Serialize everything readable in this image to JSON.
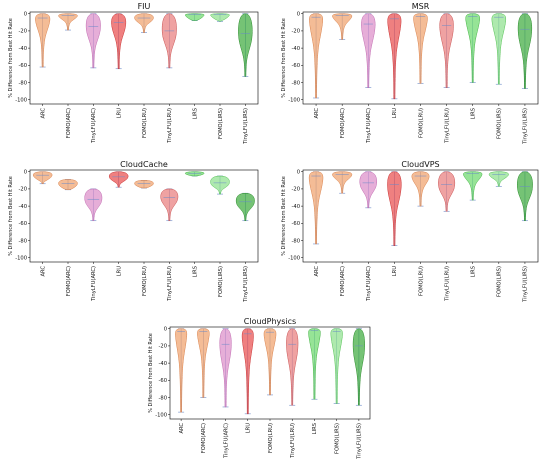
{
  "chart_data": [
    {
      "type": "violin",
      "title": "FIU",
      "ylabel": "% Difference from Best Hit Rate",
      "ylim": [
        -105,
        2
      ],
      "yticks": [
        0,
        -20,
        -40,
        -60,
        -80,
        -100
      ],
      "categories": [
        "ARC",
        "FOMO(ARC)",
        "TinyLFU(ARC)",
        "LRU",
        "FOMO(LRU)",
        "TinyLFU(LRU)",
        "LIRS",
        "FOMO(LIRS)",
        "TinyLFU(LIRS)"
      ],
      "distributions": [
        {
          "min": -62,
          "max": 0,
          "median": -5
        },
        {
          "min": -19,
          "max": 0,
          "median": -2
        },
        {
          "min": -63,
          "max": 0,
          "median": -15
        },
        {
          "min": -64,
          "max": 0,
          "median": -10
        },
        {
          "min": -22,
          "max": 0,
          "median": -5
        },
        {
          "min": -63,
          "max": 0,
          "median": -20
        },
        {
          "min": -8,
          "max": 0,
          "median": -1
        },
        {
          "min": -9,
          "max": 0,
          "median": -1
        },
        {
          "min": -73,
          "max": 0,
          "median": -23
        }
      ]
    },
    {
      "type": "violin",
      "title": "MSR",
      "ylabel": "% Difference from Best Hit Rate",
      "ylim": [
        -105,
        2
      ],
      "yticks": [
        0,
        -20,
        -40,
        -60,
        -80,
        -100
      ],
      "categories": [
        "ARC",
        "FOMO(ARC)",
        "TinyLFU(ARC)",
        "LRU",
        "FOMO(LRU)",
        "TinyLFU(LRU)",
        "LIRS",
        "FOMO(LIRS)",
        "TinyLFU(LIRS)"
      ],
      "distributions": [
        {
          "min": -98,
          "max": 0,
          "median": -4
        },
        {
          "min": -30,
          "max": 0,
          "median": -2
        },
        {
          "min": -86,
          "max": 0,
          "median": -12
        },
        {
          "min": -99,
          "max": 0,
          "median": -6
        },
        {
          "min": -81,
          "max": 0,
          "median": -3
        },
        {
          "min": -86,
          "max": 0,
          "median": -14
        },
        {
          "min": -80,
          "max": 0,
          "median": -3
        },
        {
          "min": -82,
          "max": 0,
          "median": -4
        },
        {
          "min": -87,
          "max": 0,
          "median": -18
        }
      ]
    },
    {
      "type": "violin",
      "title": "CloudCache",
      "ylabel": "% Difference from Best Hit Rate",
      "ylim": [
        -105,
        2
      ],
      "yticks": [
        0,
        -20,
        -40,
        -60,
        -80,
        -100
      ],
      "categories": [
        "ARC",
        "FOMO(ARC)",
        "TinyLFU(ARC)",
        "LRU",
        "FOMO(LRU)",
        "TinyLFU(LRU)",
        "LIRS",
        "FOMO(LIRS)",
        "TinyLFU(LIRS)"
      ],
      "distributions": [
        {
          "min": -14,
          "max": 0,
          "median": -4
        },
        {
          "min": -21,
          "max": -9,
          "median": -14
        },
        {
          "min": -57,
          "max": -20,
          "median": -32
        },
        {
          "min": -18,
          "max": 0,
          "median": -6
        },
        {
          "min": -19,
          "max": -10,
          "median": -14
        },
        {
          "min": -57,
          "max": -20,
          "median": -30
        },
        {
          "min": -5,
          "max": 0,
          "median": -2
        },
        {
          "min": -26,
          "max": -5,
          "median": -13
        },
        {
          "min": -57,
          "max": -25,
          "median": -35
        }
      ]
    },
    {
      "type": "violin",
      "title": "CloudVPS",
      "ylabel": "% Difference from Best Hit Rate",
      "ylim": [
        -105,
        2
      ],
      "yticks": [
        0,
        -20,
        -40,
        -60,
        -80,
        -100
      ],
      "categories": [
        "ARC",
        "FOMO(ARC)",
        "TinyLFU(ARC)",
        "LRU",
        "FOMO(LRU)",
        "TinyLFU(LRU)",
        "LIRS",
        "FOMO(LIRS)",
        "TinyLFU(LIRS)"
      ],
      "distributions": [
        {
          "min": -84,
          "max": 0,
          "median": -5
        },
        {
          "min": -25,
          "max": 0,
          "median": -3
        },
        {
          "min": -42,
          "max": 0,
          "median": -13
        },
        {
          "min": -86,
          "max": 0,
          "median": -15
        },
        {
          "min": -40,
          "max": 0,
          "median": -5
        },
        {
          "min": -46,
          "max": 0,
          "median": -15
        },
        {
          "min": -33,
          "max": 0,
          "median": -2
        },
        {
          "min": -17,
          "max": 0,
          "median": -3
        },
        {
          "min": -57,
          "max": 0,
          "median": -17
        }
      ]
    },
    {
      "type": "violin",
      "title": "CloudPhysics",
      "ylabel": "% Difference from Best Hit Rate",
      "ylim": [
        -105,
        2
      ],
      "yticks": [
        0,
        -20,
        -40,
        -60,
        -80,
        -100
      ],
      "categories": [
        "ARC",
        "FOMO(ARC)",
        "TinyLFU(ARC)",
        "LRU",
        "FOMO(LRU)",
        "TinyLFU(LRU)",
        "LIRS",
        "FOMO(LIRS)",
        "TinyLFU(LIRS)"
      ],
      "distributions": [
        {
          "min": -97,
          "max": 0,
          "median": -3
        },
        {
          "min": -80,
          "max": 0,
          "median": -3
        },
        {
          "min": -91,
          "max": 0,
          "median": -18
        },
        {
          "min": -99,
          "max": 0,
          "median": -6
        },
        {
          "min": -77,
          "max": 0,
          "median": -4
        },
        {
          "min": -89,
          "max": 0,
          "median": -18
        },
        {
          "min": -82,
          "max": 0,
          "median": -2
        },
        {
          "min": -87,
          "max": 0,
          "median": -3
        },
        {
          "min": -89,
          "max": 0,
          "median": -20
        }
      ]
    }
  ],
  "colors": {
    "fills": [
      "#f0a06a",
      "#f0a06a",
      "#dc8cc8",
      "#e84a4a",
      "#f0a06a",
      "#e87a7a",
      "#6ad86a",
      "#8ce08c",
      "#3aaa3a"
    ],
    "strokes": [
      "#d8804a",
      "#d8804a",
      "#c06ab0",
      "#c83030",
      "#d8804a",
      "#c85050",
      "#40b040",
      "#50c050",
      "#2a8a2a"
    ],
    "minmax_line": "#6a8ac8",
    "axis": "#000000"
  }
}
